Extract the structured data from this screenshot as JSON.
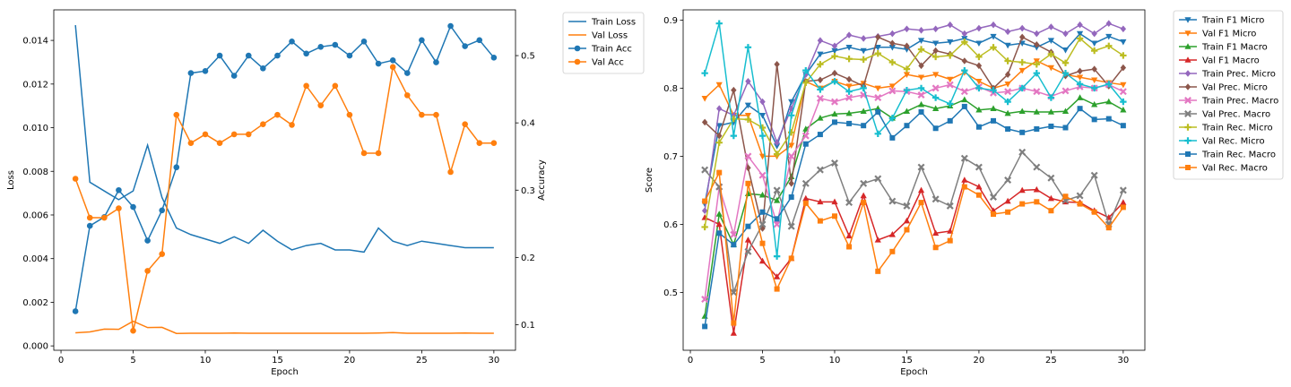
{
  "colors": {
    "blue": "#1f77b4",
    "orange": "#ff7f0e",
    "green": "#2ca02c",
    "red": "#d62728",
    "purple": "#9467bd",
    "brown": "#8c564b",
    "pink": "#e377c2",
    "gray": "#7f7f7f",
    "olive": "#bcbd22",
    "cyan": "#17becf"
  },
  "chart_data": [
    {
      "type": "line",
      "title": "",
      "xlabel": "Epoch",
      "ylabel": "Loss",
      "y2label": "Accuracy",
      "xlim": [
        -0.5,
        31.5
      ],
      "ylim": [
        -0.0002,
        0.0154
      ],
      "y2lim": [
        0.062,
        0.568
      ],
      "xticks": [
        0,
        5,
        10,
        15,
        20,
        25,
        30
      ],
      "yticks": [
        0.0,
        0.002,
        0.004,
        0.006,
        0.008,
        0.01,
        0.012,
        0.014
      ],
      "ytick_labels": [
        "0.000",
        "0.002",
        "0.004",
        "0.006",
        "0.008",
        "0.010",
        "0.012",
        "0.014"
      ],
      "y2ticks": [
        0.1,
        0.2,
        0.3,
        0.4,
        0.5
      ],
      "y2tick_labels": [
        "0.1",
        "0.2",
        "0.3",
        "0.4",
        "0.5"
      ],
      "legend_position": "outside-right-top",
      "x": [
        1,
        2,
        3,
        4,
        5,
        6,
        7,
        8,
        9,
        10,
        11,
        12,
        13,
        14,
        15,
        16,
        17,
        18,
        19,
        20,
        21,
        22,
        23,
        24,
        25,
        26,
        27,
        28,
        29,
        30
      ],
      "series": [
        {
          "name": "Train Loss",
          "axis": "left",
          "color": "#1f77b4",
          "marker": "none",
          "values": [
            0.0147,
            0.0075,
            0.0071,
            0.0067,
            0.0071,
            0.0092,
            0.0068,
            0.0054,
            0.0051,
            0.0049,
            0.0047,
            0.005,
            0.0047,
            0.0053,
            0.0048,
            0.0044,
            0.0046,
            0.0047,
            0.0044,
            0.0044,
            0.0043,
            0.0054,
            0.0048,
            0.0046,
            0.0048,
            0.0047,
            0.0046,
            0.0045,
            0.0045,
            0.0045
          ]
        },
        {
          "name": "Val Loss",
          "axis": "left",
          "color": "#ff7f0e",
          "marker": "none",
          "values": [
            0.0006,
            0.00064,
            0.00077,
            0.00076,
            0.00113,
            0.00084,
            0.00085,
            0.00057,
            0.00058,
            0.00058,
            0.00058,
            0.00059,
            0.00058,
            0.00058,
            0.00058,
            0.00058,
            0.00058,
            0.00058,
            0.00058,
            0.00058,
            0.00058,
            0.00059,
            0.00061,
            0.00058,
            0.00058,
            0.00058,
            0.00058,
            0.00059,
            0.00058,
            0.00058
          ]
        },
        {
          "name": "Train Acc",
          "axis": "right",
          "color": "#1f77b4",
          "marker": "circle",
          "values": [
            0.12,
            0.247,
            0.26,
            0.3,
            0.275,
            0.225,
            0.27,
            0.334,
            0.474,
            0.477,
            0.5,
            0.47,
            0.5,
            0.481,
            0.5,
            0.521,
            0.503,
            0.513,
            0.516,
            0.5,
            0.521,
            0.488,
            0.493,
            0.474,
            0.523,
            0.49,
            0.544,
            0.514,
            0.523,
            0.497
          ]
        },
        {
          "name": "Val Acc",
          "axis": "right",
          "color": "#ff7f0e",
          "marker": "circle",
          "values": [
            0.317,
            0.259,
            0.259,
            0.273,
            0.091,
            0.18,
            0.205,
            0.412,
            0.37,
            0.383,
            0.37,
            0.383,
            0.383,
            0.398,
            0.412,
            0.397,
            0.455,
            0.426,
            0.455,
            0.412,
            0.355,
            0.355,
            0.483,
            0.441,
            0.412,
            0.412,
            0.327,
            0.398,
            0.37,
            0.37
          ]
        }
      ]
    },
    {
      "type": "line",
      "title": "",
      "xlabel": "Epoch",
      "ylabel": "Score",
      "xlim": [
        -0.5,
        31.5
      ],
      "ylim": [
        0.415,
        0.915
      ],
      "xticks": [
        0,
        5,
        10,
        15,
        20,
        25,
        30
      ],
      "yticks": [
        0.5,
        0.6,
        0.7,
        0.8,
        0.9
      ],
      "ytick_labels": [
        "0.5",
        "0.6",
        "0.7",
        "0.8",
        "0.9"
      ],
      "legend_position": "outside-right-top",
      "x": [
        1,
        2,
        3,
        4,
        5,
        6,
        7,
        8,
        9,
        10,
        11,
        12,
        13,
        14,
        15,
        16,
        17,
        18,
        19,
        20,
        21,
        22,
        23,
        24,
        25,
        26,
        27,
        28,
        29,
        30
      ],
      "series": [
        {
          "name": "Train F1 Micro",
          "color": "#1f77b4",
          "marker": "tri-down",
          "values": [
            0.63,
            0.745,
            0.75,
            0.775,
            0.76,
            0.715,
            0.78,
            0.82,
            0.85,
            0.855,
            0.86,
            0.855,
            0.86,
            0.86,
            0.857,
            0.87,
            0.866,
            0.868,
            0.873,
            0.866,
            0.876,
            0.863,
            0.866,
            0.86,
            0.87,
            0.856,
            0.88,
            0.866,
            0.876,
            0.868
          ]
        },
        {
          "name": "Val F1 Micro",
          "color": "#ff7f0e",
          "marker": "tri-down",
          "values": [
            0.785,
            0.805,
            0.76,
            0.76,
            0.7,
            0.7,
            0.716,
            0.81,
            0.8,
            0.81,
            0.803,
            0.807,
            0.8,
            0.803,
            0.82,
            0.816,
            0.82,
            0.813,
            0.823,
            0.81,
            0.8,
            0.806,
            0.826,
            0.84,
            0.83,
            0.82,
            0.816,
            0.812,
            0.808,
            0.805
          ]
        },
        {
          "name": "Train F1 Macro",
          "color": "#2ca02c",
          "marker": "tri-up",
          "values": [
            0.465,
            0.615,
            0.57,
            0.645,
            0.643,
            0.635,
            0.67,
            0.74,
            0.756,
            0.762,
            0.763,
            0.766,
            0.77,
            0.756,
            0.766,
            0.776,
            0.77,
            0.774,
            0.783,
            0.768,
            0.77,
            0.763,
            0.766,
            0.765,
            0.765,
            0.766,
            0.786,
            0.776,
            0.78,
            0.768
          ]
        },
        {
          "name": "Val F1 Macro",
          "color": "#d62728",
          "marker": "tri-up",
          "values": [
            0.61,
            0.6,
            0.44,
            0.577,
            0.546,
            0.523,
            0.55,
            0.638,
            0.633,
            0.633,
            0.583,
            0.642,
            0.577,
            0.585,
            0.605,
            0.65,
            0.587,
            0.59,
            0.665,
            0.655,
            0.62,
            0.634,
            0.65,
            0.651,
            0.638,
            0.633,
            0.632,
            0.62,
            0.61,
            0.632
          ]
        },
        {
          "name": "Train Prec. Micro",
          "color": "#9467bd",
          "marker": "diamond",
          "values": [
            0.62,
            0.77,
            0.76,
            0.81,
            0.78,
            0.72,
            0.77,
            0.82,
            0.87,
            0.862,
            0.878,
            0.873,
            0.876,
            0.88,
            0.887,
            0.885,
            0.887,
            0.893,
            0.88,
            0.888,
            0.893,
            0.883,
            0.888,
            0.88,
            0.89,
            0.88,
            0.893,
            0.88,
            0.895,
            0.887
          ]
        },
        {
          "name": "Val Prec. Micro",
          "color": "#8c564b",
          "marker": "diamond",
          "values": [
            0.75,
            0.73,
            0.797,
            0.683,
            0.594,
            0.835,
            0.66,
            0.81,
            0.812,
            0.822,
            0.813,
            0.803,
            0.875,
            0.866,
            0.862,
            0.833,
            0.855,
            0.85,
            0.84,
            0.833,
            0.8,
            0.82,
            0.875,
            0.864,
            0.853,
            0.818,
            0.825,
            0.828,
            0.803,
            0.83
          ]
        },
        {
          "name": "Train Prec. Macro",
          "color": "#e377c2",
          "marker": "x",
          "values": [
            0.49,
            0.655,
            0.585,
            0.7,
            0.672,
            0.6,
            0.7,
            0.73,
            0.785,
            0.78,
            0.786,
            0.79,
            0.786,
            0.796,
            0.795,
            0.79,
            0.8,
            0.805,
            0.795,
            0.802,
            0.793,
            0.795,
            0.8,
            0.795,
            0.788,
            0.796,
            0.802,
            0.8,
            0.805,
            0.795
          ]
        },
        {
          "name": "Val Prec. Macro",
          "color": "#7f7f7f",
          "marker": "x",
          "values": [
            0.68,
            0.655,
            0.5,
            0.56,
            0.6,
            0.65,
            0.597,
            0.66,
            0.68,
            0.69,
            0.632,
            0.66,
            0.667,
            0.634,
            0.627,
            0.684,
            0.637,
            0.627,
            0.697,
            0.684,
            0.64,
            0.665,
            0.706,
            0.684,
            0.668,
            0.635,
            0.642,
            0.672,
            0.6,
            0.65
          ]
        },
        {
          "name": "Train Rec. Micro",
          "color": "#bcbd22",
          "marker": "plus",
          "values": [
            0.596,
            0.72,
            0.755,
            0.754,
            0.742,
            0.703,
            0.735,
            0.808,
            0.835,
            0.847,
            0.843,
            0.842,
            0.851,
            0.838,
            0.828,
            0.857,
            0.846,
            0.848,
            0.868,
            0.846,
            0.86,
            0.84,
            0.838,
            0.835,
            0.85,
            0.837,
            0.873,
            0.855,
            0.862,
            0.848
          ]
        },
        {
          "name": "Val Rec. Micro",
          "color": "#17becf",
          "marker": "plus",
          "values": [
            0.822,
            0.895,
            0.73,
            0.86,
            0.73,
            0.553,
            0.76,
            0.826,
            0.798,
            0.81,
            0.795,
            0.8,
            0.733,
            0.756,
            0.797,
            0.8,
            0.786,
            0.777,
            0.826,
            0.8,
            0.797,
            0.78,
            0.8,
            0.822,
            0.786,
            0.822,
            0.806,
            0.8,
            0.806,
            0.78
          ]
        },
        {
          "name": "Train Rec. Macro",
          "color": "#1f77b4",
          "marker": "square",
          "values": [
            0.45,
            0.587,
            0.57,
            0.597,
            0.618,
            0.608,
            0.64,
            0.718,
            0.732,
            0.75,
            0.748,
            0.745,
            0.765,
            0.727,
            0.745,
            0.765,
            0.741,
            0.752,
            0.773,
            0.743,
            0.752,
            0.74,
            0.735,
            0.74,
            0.744,
            0.742,
            0.77,
            0.754,
            0.755,
            0.745
          ]
        },
        {
          "name": "Val Rec. Macro",
          "color": "#ff7f0e",
          "marker": "square",
          "values": [
            0.634,
            0.676,
            0.455,
            0.66,
            0.572,
            0.505,
            0.55,
            0.631,
            0.605,
            0.612,
            0.567,
            0.632,
            0.531,
            0.56,
            0.592,
            0.632,
            0.566,
            0.576,
            0.655,
            0.643,
            0.615,
            0.618,
            0.63,
            0.633,
            0.62,
            0.641,
            0.63,
            0.618,
            0.595,
            0.625
          ]
        }
      ]
    }
  ]
}
